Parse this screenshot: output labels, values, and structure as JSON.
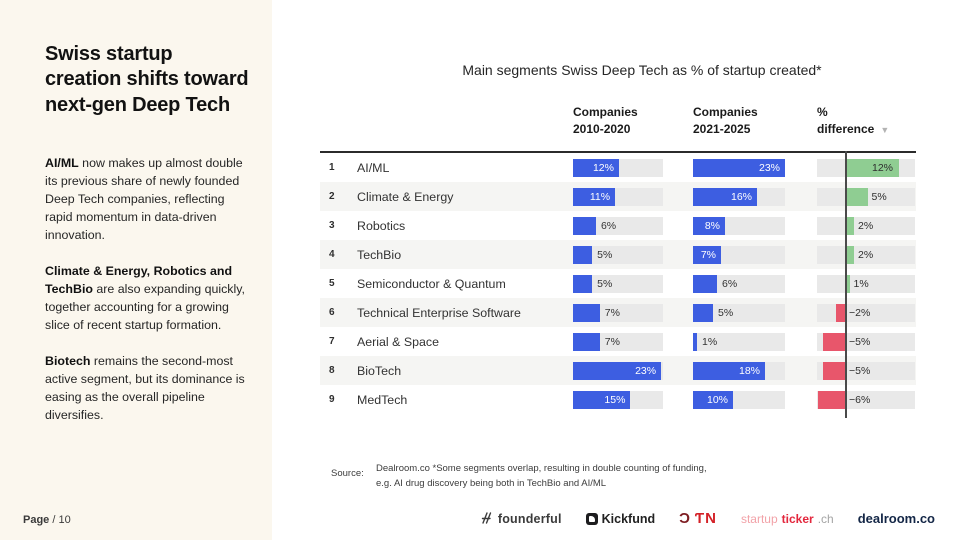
{
  "sidebar": {
    "title": "Swiss startup creation shifts toward next-gen Deep Tech",
    "paragraphs": [
      {
        "bold": "AI/ML",
        "text": " now makes up almost double its previous share of newly founded Deep Tech companies, reflecting rapid momentum in data-driven innovation."
      },
      {
        "bold": "Climate & Energy, Robotics and TechBio",
        "text": " are also expanding quickly, together accounting for a growing slice of recent startup formation."
      },
      {
        "bold": "Biotech",
        "text": " remains the second-most active segment, but its dominance is easing as the overall pipeline diversifies."
      }
    ],
    "page_label": "Page",
    "page_number": "/ 10"
  },
  "chart": {
    "title": "Main segments Swiss Deep Tech as % of startup created*",
    "col1_header": "Companies\n2010-2020",
    "col2_header": "Companies\n2021-2025",
    "col3_header": "%\ndifference",
    "sort_icon": "▼"
  },
  "chart_data": {
    "type": "bar",
    "title": "Main segments Swiss Deep Tech as % of startup created*",
    "categories": [
      "AI/ML",
      "Climate & Energy",
      "Robotics",
      "TechBio",
      "Semiconductor & Quantum",
      "Technical Enterprise Software",
      "Aerial & Space",
      "BioTech",
      "MedTech"
    ],
    "row_numbers": [
      1,
      2,
      3,
      4,
      5,
      6,
      7,
      8,
      9
    ],
    "series": [
      {
        "name": "Companies 2010-2020",
        "values": [
          12,
          11,
          6,
          5,
          5,
          7,
          7,
          23,
          15
        ]
      },
      {
        "name": "Companies 2021-2025",
        "values": [
          23,
          16,
          8,
          7,
          6,
          5,
          1,
          18,
          10
        ]
      },
      {
        "name": "% difference",
        "values": [
          12,
          5,
          2,
          2,
          1,
          -2,
          -5,
          -5,
          -6
        ]
      }
    ],
    "unit": "%",
    "legend_position": "column-headers",
    "grid": false,
    "bar_xlim_companies": [
      0,
      24
    ],
    "bar_xlim_difference": [
      -6,
      15
    ]
  },
  "source": {
    "label": "Source:",
    "line1": "Dealroom.co *Some segments overlap, resulting in double counting of funding,",
    "line2": "e.g. AI drug discovery being both in TechBio and AI/ML"
  },
  "logos": {
    "founderful": "founderful",
    "kickfund": "Kickfund",
    "dtn_d1": "Ɔ",
    "dtn_d2": "ƬN",
    "startupticker_p1": "startup",
    "startupticker_p2": "ticker",
    "startupticker_p3": ".ch",
    "dealroom": "dealroom.co"
  },
  "colors": {
    "bar_blue": "#3d5ee1",
    "bar_green": "#8fcd92",
    "bar_red": "#e8566b",
    "track_gray": "#e9e9e9",
    "row_alt": "#f5f5f3",
    "sidebar_bg": "#fbf7ee",
    "zero_line": "#4a4a4a",
    "table_top_border": "#2b2b2b"
  }
}
